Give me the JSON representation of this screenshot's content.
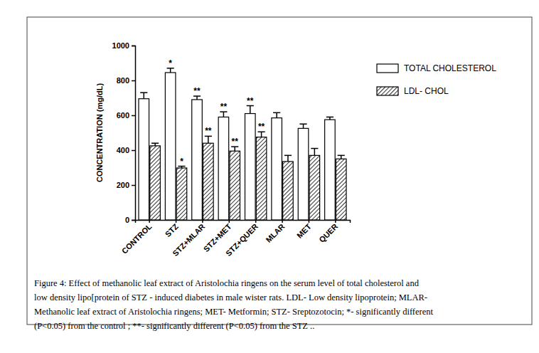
{
  "chart_data": {
    "type": "bar",
    "y_label": "CONCENTRATION (mg/dL)",
    "categories": [
      "CONTROL",
      "STZ",
      "STZ+MLAR",
      "STZ+MET",
      "STZ+QUER",
      "MLAR",
      "MET",
      "QUER"
    ],
    "series": [
      {
        "name": "TOTAL CHOLESTEROL",
        "color": "#ffffff",
        "values": [
          695,
          845,
          690,
          590,
          610,
          585,
          525,
          575
        ],
        "errors": [
          35,
          25,
          20,
          30,
          45,
          30,
          25,
          15
        ],
        "annotations": [
          null,
          "*",
          "**",
          "**",
          "**",
          null,
          null,
          null
        ]
      },
      {
        "name": "LDL- CHOL",
        "color": "#000000",
        "values": [
          425,
          298,
          440,
          395,
          475,
          335,
          370,
          350
        ],
        "errors": [
          15,
          10,
          40,
          25,
          30,
          35,
          40,
          20
        ],
        "annotations": [
          null,
          "*",
          "**",
          "**",
          "**",
          null,
          null,
          null
        ]
      }
    ],
    "ylim": [
      0,
      1000
    ],
    "yticks": [
      0,
      200,
      400,
      600,
      800,
      1000
    ],
    "legend": "upper right",
    "caption": [
      "Figure 4:  Effect of methanolic leaf extract of Aristolochia ringens on the serum level of  total cholesterol and",
      "low density lipo[protein of STZ - induced diabetes in male wister rats. LDL- Low density lipoprotein; MLAR-",
      "Methanolic leaf extract of Aristolochia ringens; MET- Metformin; STZ- Sreptozotocin; *- significantly different",
      "(P<0.05) from the control ; **- significantly different (P<0.05) from the STZ .."
    ]
  }
}
